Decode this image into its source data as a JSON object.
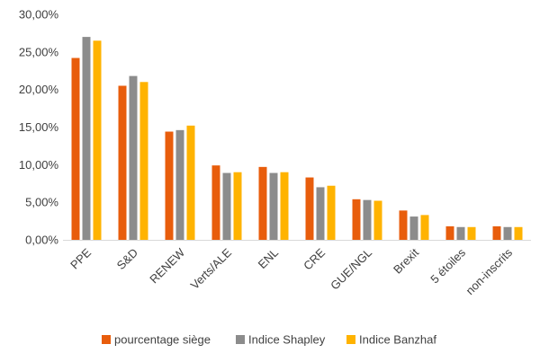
{
  "chart_data": {
    "type": "bar",
    "categories": [
      "PPE",
      "S&D",
      "RENEW",
      "Verts/ALE",
      "ENL",
      "CRE",
      "GUE/NGL",
      "Brexit",
      "5 étoiles",
      "non-inscrits"
    ],
    "series": [
      {
        "name": "pourcentage siège",
        "color": "#E85D0C",
        "values": [
          0.242,
          0.205,
          0.144,
          0.099,
          0.097,
          0.083,
          0.054,
          0.039,
          0.018,
          0.018
        ]
      },
      {
        "name": "Indice Shapley",
        "color": "#8C8C8C",
        "values": [
          0.27,
          0.218,
          0.146,
          0.089,
          0.089,
          0.07,
          0.053,
          0.031,
          0.017,
          0.017
        ]
      },
      {
        "name": "Indice Banzhaf",
        "color": "#FFB300",
        "values": [
          0.265,
          0.21,
          0.152,
          0.09,
          0.09,
          0.072,
          0.052,
          0.033,
          0.017,
          0.017
        ]
      }
    ],
    "y_ticks": [
      "0,00%",
      "5,00%",
      "10,00%",
      "15,00%",
      "20,00%",
      "25,00%",
      "30,00%"
    ],
    "ylim": [
      0,
      0.3
    ],
    "grid": false,
    "legend_position": "bottom",
    "xlabel": "",
    "ylabel": "",
    "title": ""
  }
}
